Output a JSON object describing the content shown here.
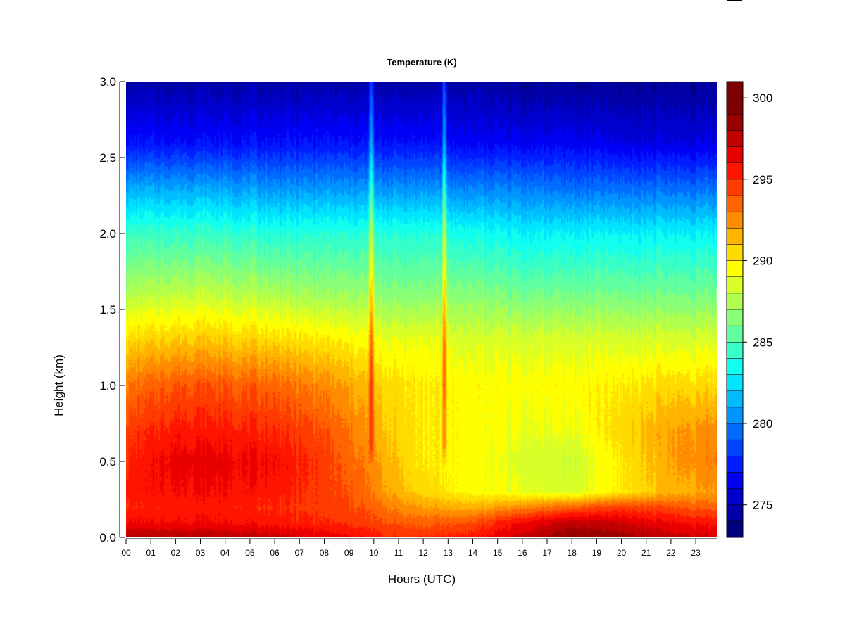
{
  "chart_data": {
    "type": "heatmap",
    "title": "Temperature (K)",
    "xlabel": "Hours (UTC)",
    "ylabel": "Height (km)",
    "x_tick_labels": [
      "00",
      "01",
      "02",
      "03",
      "04",
      "05",
      "06",
      "07",
      "08",
      "09",
      "10",
      "11",
      "12",
      "13",
      "14",
      "15",
      "16",
      "17",
      "18",
      "19",
      "20",
      "21",
      "22",
      "23"
    ],
    "xlim": [
      0,
      23.85
    ],
    "ylim": [
      0,
      3.0
    ],
    "y_ticks": [
      0.0,
      0.5,
      1.0,
      1.5,
      2.0,
      2.5,
      3.0
    ],
    "y_tick_labels": [
      "0.0",
      "0.5",
      "1.0",
      "1.5",
      "2.0",
      "2.5",
      "3.0"
    ],
    "colorbar": {
      "min": 273,
      "max": 301,
      "step": 1,
      "ticks": [
        275,
        280,
        285,
        290,
        295,
        300
      ],
      "tick_labels": [
        "275",
        "280",
        "285",
        "290",
        "295",
        "300"
      ],
      "colors": [
        "#00007F",
        "#0000A6",
        "#0000CD",
        "#0000F5",
        "#001CFF",
        "#0044FF",
        "#006CFF",
        "#0094FF",
        "#00BCFF",
        "#00E4FF",
        "#10FFEF",
        "#38FFC7",
        "#60FF9F",
        "#88FF77",
        "#B0FF4F",
        "#D8FF27",
        "#FFFF00",
        "#FFDB00",
        "#FFB400",
        "#FF8C00",
        "#FF6400",
        "#FF3C00",
        "#FF1400",
        "#E80000",
        "#C10000",
        "#990000",
        "#7F0000",
        "#7F0000"
      ]
    },
    "temperature_field": {
      "heights_km": [
        0.0,
        0.1,
        0.2,
        0.3,
        0.5,
        0.7,
        1.0,
        1.3,
        1.6,
        2.0,
        2.3,
        2.6,
        3.0
      ],
      "hours": [
        0,
        2,
        3.5,
        6,
        8,
        9.5,
        10.5,
        12,
        14,
        16,
        18,
        20,
        22,
        23.85
      ],
      "values_K": [
        [
          298.0,
          298.0,
          298.0,
          297.5,
          296.5,
          296.0,
          295.0,
          295.0,
          295.5,
          297.5,
          299.0,
          298.5,
          297.5,
          297.0
        ],
        [
          296.0,
          296.0,
          296.0,
          295.5,
          295.0,
          294.5,
          294.0,
          293.5,
          294.0,
          296.0,
          297.5,
          297.0,
          296.0,
          295.5
        ],
        [
          295.0,
          295.5,
          295.5,
          295.0,
          294.5,
          294.0,
          293.0,
          292.0,
          291.5,
          292.5,
          293.5,
          294.5,
          294.0,
          293.5
        ],
        [
          295.5,
          296.0,
          296.0,
          295.5,
          294.5,
          293.5,
          292.0,
          290.5,
          289.5,
          289.0,
          288.5,
          290.0,
          291.5,
          292.0
        ],
        [
          295.0,
          296.5,
          296.5,
          296.0,
          294.5,
          293.0,
          291.5,
          290.0,
          289.5,
          288.5,
          288.0,
          290.0,
          292.0,
          293.0
        ],
        [
          294.5,
          295.5,
          295.5,
          295.0,
          294.0,
          292.5,
          291.0,
          290.0,
          289.5,
          289.0,
          289.0,
          290.5,
          292.0,
          292.5
        ],
        [
          293.0,
          294.0,
          294.0,
          293.5,
          292.5,
          291.5,
          290.5,
          290.0,
          289.5,
          289.5,
          289.5,
          290.0,
          290.5,
          290.5
        ],
        [
          290.5,
          291.0,
          291.0,
          290.5,
          290.0,
          289.5,
          289.0,
          289.0,
          288.5,
          288.5,
          288.5,
          288.5,
          288.5,
          288.5
        ],
        [
          287.5,
          288.0,
          288.0,
          287.5,
          287.0,
          287.0,
          286.5,
          286.5,
          286.5,
          286.0,
          286.0,
          286.0,
          286.0,
          286.0
        ],
        [
          284.5,
          284.5,
          284.5,
          284.0,
          284.0,
          284.0,
          284.0,
          284.0,
          283.5,
          283.0,
          283.0,
          283.0,
          283.0,
          283.0
        ],
        [
          281.0,
          281.0,
          281.0,
          280.5,
          280.5,
          280.5,
          280.5,
          280.5,
          280.0,
          280.0,
          279.5,
          279.5,
          279.5,
          279.5
        ],
        [
          277.0,
          277.0,
          277.0,
          277.0,
          277.0,
          277.0,
          277.0,
          277.0,
          276.5,
          276.5,
          276.5,
          276.0,
          276.0,
          276.0
        ],
        [
          274.5,
          274.5,
          274.5,
          274.5,
          274.5,
          274.5,
          274.5,
          274.5,
          274.5,
          274.0,
          274.0,
          274.0,
          274.0,
          274.0
        ]
      ]
    },
    "warm_streaks": [
      {
        "hour": 9.9,
        "min_height_km": 0.45,
        "max_height_km": 3.0
      },
      {
        "hour": 12.85,
        "min_height_km": 0.45,
        "max_height_km": 3.0
      }
    ],
    "grid": false,
    "legend": "colorbar-right"
  }
}
